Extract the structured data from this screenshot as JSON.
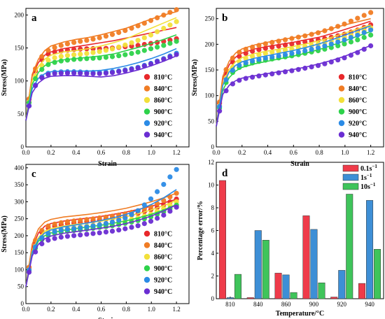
{
  "chart_data": [
    {
      "type": "line",
      "panel_label": "a",
      "xlabel": "Strain",
      "ylabel": "Stress(MPa)",
      "xlim": [
        0.0,
        1.3
      ],
      "ylim": [
        0,
        210
      ],
      "xticks": [
        "0.0",
        "0.2",
        "0.4",
        "0.6",
        "0.8",
        "1.0",
        "1.2"
      ],
      "yticks": [
        "0",
        "50",
        "100",
        "150",
        "200"
      ],
      "legend_position": "bottom-right",
      "x": [
        0.0,
        0.05,
        0.1,
        0.15,
        0.2,
        0.3,
        0.4,
        0.5,
        0.6,
        0.7,
        0.8,
        0.9,
        1.0,
        1.1,
        1.2
      ],
      "series": [
        {
          "name": "810°C",
          "color": "#e8282b",
          "measured": [
            40,
            104,
            125,
            138,
            143,
            146,
            148,
            149,
            149,
            150,
            152,
            154,
            157,
            160,
            164
          ],
          "predicted": [
            40,
            108,
            128,
            139,
            144,
            149,
            152,
            155,
            158,
            161,
            165,
            169,
            173,
            177,
            181
          ]
        },
        {
          "name": "840°C",
          "color": "#f07c24",
          "measured": [
            40,
            106,
            130,
            143,
            149,
            155,
            159,
            162,
            166,
            171,
            177,
            184,
            192,
            200,
            208
          ],
          "predicted": [
            40,
            110,
            133,
            146,
            153,
            159,
            163,
            166,
            170,
            175,
            180,
            187,
            194,
            200,
            205
          ]
        },
        {
          "name": "860°C",
          "color": "#f2e03a",
          "measured": [
            40,
            96,
            118,
            128,
            134,
            138,
            140,
            142,
            145,
            149,
            155,
            162,
            170,
            180,
            190
          ],
          "predicted": [
            40,
            100,
            122,
            133,
            139,
            144,
            146,
            149,
            153,
            158,
            164,
            172,
            180,
            188,
            196
          ]
        },
        {
          "name": "900°C",
          "color": "#2dd24a",
          "measured": [
            40,
            94,
            112,
            122,
            127,
            131,
            133,
            134,
            135,
            137,
            140,
            144,
            149,
            154,
            160
          ],
          "predicted": [
            40,
            95,
            113,
            123,
            128,
            132,
            134,
            136,
            138,
            141,
            146,
            151,
            157,
            163,
            170
          ]
        },
        {
          "name": "920°C",
          "color": "#2b8be6",
          "measured": [
            40,
            85,
            102,
            110,
            113,
            114,
            114,
            113,
            113,
            114,
            117,
            121,
            127,
            134,
            142
          ],
          "predicted": [
            40,
            88,
            104,
            111,
            114,
            115,
            115,
            115,
            116,
            119,
            123,
            128,
            134,
            141,
            149
          ]
        },
        {
          "name": "940°C",
          "color": "#6a2dd2",
          "measured": [
            40,
            84,
            101,
            108,
            111,
            112,
            112,
            111,
            111,
            113,
            116,
            120,
            126,
            133,
            140
          ],
          "predicted": [
            40,
            82,
            97,
            104,
            107,
            108,
            108,
            107,
            106,
            108,
            112,
            117,
            123,
            130,
            138
          ]
        }
      ]
    },
    {
      "type": "line",
      "panel_label": "b",
      "xlabel": "Strain",
      "ylabel": "Stress(MPa)",
      "xlim": [
        0.0,
        1.3
      ],
      "ylim": [
        0,
        270
      ],
      "xticks": [
        "0.0",
        "0.2",
        "0.4",
        "0.6",
        "0.8",
        "1.0",
        "1.2"
      ],
      "yticks": [
        "0",
        "50",
        "100",
        "150",
        "200",
        "250"
      ],
      "legend_position": "bottom-right",
      "x": [
        0.0,
        0.05,
        0.1,
        0.15,
        0.2,
        0.3,
        0.4,
        0.5,
        0.6,
        0.7,
        0.8,
        0.9,
        1.0,
        1.1,
        1.2
      ],
      "series": [
        {
          "name": "810°C",
          "color": "#e8282b",
          "measured": [
            40,
            130,
            158,
            172,
            180,
            188,
            193,
            197,
            201,
            205,
            209,
            214,
            220,
            228,
            238
          ],
          "predicted": [
            40,
            132,
            160,
            175,
            183,
            191,
            196,
            200,
            204,
            209,
            214,
            221,
            229,
            237,
            245
          ]
        },
        {
          "name": "840°C",
          "color": "#f07c24",
          "measured": [
            40,
            135,
            165,
            180,
            188,
            196,
            202,
            207,
            212,
            217,
            223,
            231,
            240,
            251,
            262
          ],
          "predicted": [
            40,
            137,
            167,
            183,
            191,
            199,
            204,
            209,
            213,
            218,
            224,
            231,
            238,
            244,
            250
          ]
        },
        {
          "name": "860°C",
          "color": "#f2e03a",
          "measured": [
            40,
            120,
            148,
            162,
            170,
            178,
            183,
            187,
            191,
            196,
            201,
            207,
            214,
            222,
            232
          ],
          "predicted": [
            40,
            122,
            151,
            166,
            174,
            182,
            187,
            191,
            196,
            201,
            207,
            214,
            222,
            230,
            238
          ]
        },
        {
          "name": "900°C",
          "color": "#2dd24a",
          "measured": [
            40,
            112,
            138,
            151,
            158,
            165,
            170,
            174,
            178,
            183,
            188,
            194,
            201,
            209,
            218
          ],
          "predicted": [
            40,
            110,
            135,
            148,
            155,
            162,
            167,
            172,
            177,
            183,
            190,
            198,
            207,
            216,
            225
          ]
        },
        {
          "name": "920°C",
          "color": "#2b8be6",
          "measured": [
            40,
            118,
            143,
            155,
            162,
            169,
            174,
            178,
            183,
            188,
            194,
            201,
            209,
            218,
            228
          ],
          "predicted": [
            40,
            120,
            146,
            159,
            166,
            173,
            178,
            183,
            188,
            194,
            201,
            209,
            218,
            227,
            236
          ]
        },
        {
          "name": "940°C",
          "color": "#6a2dd2",
          "measured": [
            40,
            100,
            118,
            127,
            132,
            137,
            141,
            145,
            149,
            154,
            159,
            166,
            174,
            184,
            197
          ],
          "predicted": [
            40,
            102,
            120,
            129,
            134,
            139,
            143,
            147,
            151,
            156,
            162,
            169,
            177,
            187,
            198
          ]
        }
      ]
    },
    {
      "type": "line",
      "panel_label": "c",
      "xlabel": "Strain",
      "ylabel": "Stress(MPa)",
      "xlim": [
        0.0,
        1.3
      ],
      "ylim": [
        0,
        410
      ],
      "xticks": [
        "0.0",
        "0.2",
        "0.4",
        "0.6",
        "0.8",
        "1.0",
        "1.2"
      ],
      "yticks": [
        "0",
        "50",
        "100",
        "150",
        "200",
        "250",
        "300",
        "350",
        "400"
      ],
      "legend_position": "bottom-right",
      "x": [
        0.0,
        0.05,
        0.1,
        0.15,
        0.2,
        0.3,
        0.4,
        0.5,
        0.6,
        0.7,
        0.8,
        0.9,
        1.0,
        1.1,
        1.2
      ],
      "series": [
        {
          "name": "810°C",
          "color": "#e8282b",
          "measured": [
            50,
            160,
            200,
            218,
            226,
            234,
            238,
            242,
            247,
            252,
            258,
            266,
            277,
            291,
            308
          ],
          "predicted": [
            50,
            165,
            208,
            228,
            236,
            243,
            248,
            252,
            257,
            263,
            270,
            278,
            287,
            297,
            307
          ]
        },
        {
          "name": "840°C",
          "color": "#f07c24",
          "measured": [
            50,
            165,
            206,
            224,
            232,
            240,
            244,
            248,
            253,
            258,
            265,
            274,
            286,
            304,
            325
          ],
          "predicted": [
            50,
            175,
            220,
            240,
            248,
            255,
            259,
            263,
            268,
            274,
            281,
            290,
            300,
            312,
            325
          ]
        },
        {
          "name": "860°C",
          "color": "#f2e03a",
          "measured": [
            50,
            150,
            188,
            205,
            213,
            221,
            225,
            229,
            233,
            238,
            245,
            253,
            264,
            280,
            300
          ],
          "predicted": [
            50,
            155,
            195,
            213,
            221,
            229,
            234,
            238,
            243,
            249,
            256,
            265,
            276,
            289,
            304
          ]
        },
        {
          "name": "900°C",
          "color": "#2dd24a",
          "measured": [
            50,
            145,
            180,
            196,
            204,
            212,
            216,
            220,
            225,
            230,
            237,
            245,
            256,
            271,
            290
          ],
          "predicted": [
            50,
            148,
            184,
            200,
            208,
            216,
            221,
            226,
            231,
            237,
            244,
            253,
            263,
            276,
            292
          ]
        },
        {
          "name": "920°C",
          "color": "#2b8be6",
          "measured": [
            50,
            148,
            185,
            202,
            210,
            218,
            222,
            227,
            233,
            241,
            253,
            275,
            310,
            352,
            395
          ],
          "predicted": [
            50,
            152,
            190,
            208,
            217,
            226,
            232,
            238,
            245,
            253,
            263,
            276,
            292,
            312,
            336
          ]
        },
        {
          "name": "940°C",
          "color": "#6a2dd2",
          "measured": [
            50,
            135,
            168,
            183,
            190,
            197,
            201,
            205,
            209,
            214,
            221,
            230,
            243,
            261,
            284
          ],
          "predicted": [
            50,
            140,
            175,
            191,
            199,
            207,
            212,
            217,
            222,
            228,
            236,
            246,
            258,
            273,
            291
          ]
        }
      ]
    },
    {
      "type": "bar",
      "panel_label": "d",
      "xlabel": "Temperature/°C",
      "ylabel": "Percentage error/%",
      "categories": [
        "810",
        "840",
        "860",
        "900",
        "920",
        "940"
      ],
      "ylim": [
        0,
        12
      ],
      "yticks": [
        "0",
        "2",
        "4",
        "6",
        "8",
        "10",
        "12"
      ],
      "legend_position": "top-right",
      "series": [
        {
          "name_base": "0.1s",
          "name_exp": "−1",
          "color": "#ef3b4a",
          "values": [
            10.4,
            0.1,
            2.25,
            7.3,
            0.15,
            1.35
          ]
        },
        {
          "name_base": "1s",
          "name_exp": "−1",
          "color": "#3d8fd6",
          "values": [
            0.1,
            6.0,
            2.1,
            6.1,
            2.5,
            8.65
          ]
        },
        {
          "name_base": "10s",
          "name_exp": "−1",
          "color": "#3fc45b",
          "values": [
            2.15,
            5.15,
            0.55,
            1.4,
            9.2,
            4.35
          ]
        }
      ]
    }
  ]
}
